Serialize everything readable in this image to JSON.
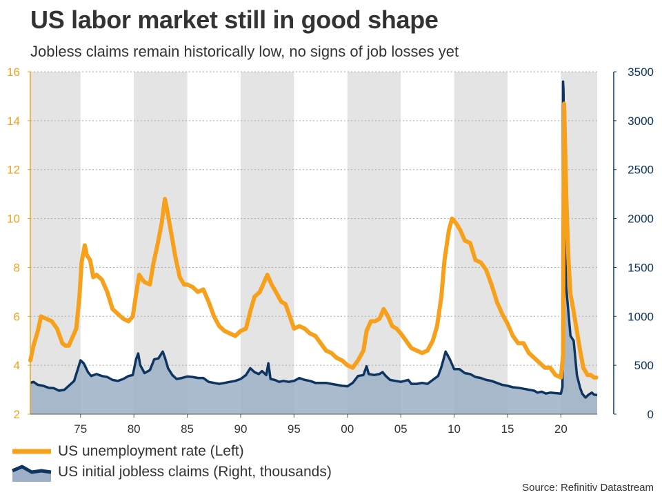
{
  "title": "US labor market still in good shape",
  "subtitle": "Jobless claims remain historically low, no signs of job losses yet",
  "source": "Source: Refinitiv Datastream",
  "colors": {
    "unemployment": "#F7A01B",
    "claims_line": "#0E3461",
    "claims_fill": "#9EB0C7",
    "band": "#E4E4E4",
    "left_axis": "#F7A01B",
    "right_axis": "#0E3461"
  },
  "legend": [
    {
      "label": "US unemployment rate (Left)",
      "icon": "orange-line-icon"
    },
    {
      "label": "US initial jobless claims (Right, thousands)",
      "icon": "navy-area-icon"
    }
  ],
  "chart_data": {
    "type": "line",
    "x_range": [
      1970.3,
      2023.4
    ],
    "x_ticks": [
      {
        "value": 1975,
        "label": "75"
      },
      {
        "value": 1980,
        "label": "80"
      },
      {
        "value": 1985,
        "label": "85"
      },
      {
        "value": 1990,
        "label": "90"
      },
      {
        "value": 1995,
        "label": "95"
      },
      {
        "value": 2000,
        "label": "00"
      },
      {
        "value": 2005,
        "label": "05"
      },
      {
        "value": 2010,
        "label": "10"
      },
      {
        "value": 2015,
        "label": "15"
      },
      {
        "value": 2020,
        "label": "20"
      }
    ],
    "left_axis": {
      "min": 2,
      "max": 16,
      "ticks": [
        2,
        4,
        6,
        8,
        10,
        12,
        14,
        16
      ]
    },
    "right_axis": {
      "min": 0,
      "max": 3500,
      "ticks": [
        0,
        500,
        1000,
        1500,
        2000,
        2500,
        3000,
        3500
      ]
    },
    "shaded_bands": [
      [
        1970.3,
        1975
      ],
      [
        1980,
        1985
      ],
      [
        1990,
        1995
      ],
      [
        2000,
        2005
      ],
      [
        2010,
        2015
      ],
      [
        2020,
        2023.4
      ]
    ],
    "series": [
      {
        "name": "US unemployment rate (Left)",
        "axis": "left",
        "style": "line",
        "points": [
          [
            1970.3,
            4.2
          ],
          [
            1970.6,
            4.8
          ],
          [
            1971.0,
            5.4
          ],
          [
            1971.3,
            6.0
          ],
          [
            1971.8,
            5.9
          ],
          [
            1972.3,
            5.8
          ],
          [
            1972.8,
            5.5
          ],
          [
            1973.3,
            4.9
          ],
          [
            1973.6,
            4.8
          ],
          [
            1973.9,
            4.8
          ],
          [
            1974.2,
            5.1
          ],
          [
            1974.6,
            5.5
          ],
          [
            1974.9,
            6.8
          ],
          [
            1975.1,
            8.2
          ],
          [
            1975.4,
            8.9
          ],
          [
            1975.6,
            8.5
          ],
          [
            1975.9,
            8.3
          ],
          [
            1976.2,
            7.6
          ],
          [
            1976.5,
            7.7
          ],
          [
            1977.0,
            7.5
          ],
          [
            1977.5,
            7.0
          ],
          [
            1978.0,
            6.3
          ],
          [
            1978.5,
            6.1
          ],
          [
            1979.0,
            5.9
          ],
          [
            1979.5,
            5.8
          ],
          [
            1979.9,
            6.0
          ],
          [
            1980.2,
            6.9
          ],
          [
            1980.5,
            7.7
          ],
          [
            1980.8,
            7.5
          ],
          [
            1981.0,
            7.4
          ],
          [
            1981.5,
            7.3
          ],
          [
            1981.8,
            8.1
          ],
          [
            1982.2,
            8.9
          ],
          [
            1982.6,
            9.8
          ],
          [
            1982.9,
            10.8
          ],
          [
            1983.1,
            10.4
          ],
          [
            1983.5,
            9.4
          ],
          [
            1983.9,
            8.4
          ],
          [
            1984.3,
            7.6
          ],
          [
            1984.7,
            7.3
          ],
          [
            1985.0,
            7.3
          ],
          [
            1985.5,
            7.2
          ],
          [
            1986.0,
            7.0
          ],
          [
            1986.5,
            7.1
          ],
          [
            1987.0,
            6.6
          ],
          [
            1987.5,
            6.0
          ],
          [
            1988.0,
            5.6
          ],
          [
            1988.5,
            5.4
          ],
          [
            1989.0,
            5.3
          ],
          [
            1989.5,
            5.2
          ],
          [
            1990.0,
            5.4
          ],
          [
            1990.5,
            5.5
          ],
          [
            1990.9,
            6.2
          ],
          [
            1991.3,
            6.8
          ],
          [
            1991.8,
            7.0
          ],
          [
            1992.2,
            7.4
          ],
          [
            1992.5,
            7.7
          ],
          [
            1992.9,
            7.3
          ],
          [
            1993.3,
            7.0
          ],
          [
            1993.8,
            6.6
          ],
          [
            1994.2,
            6.5
          ],
          [
            1994.6,
            6.0
          ],
          [
            1995.0,
            5.5
          ],
          [
            1995.5,
            5.6
          ],
          [
            1996.0,
            5.5
          ],
          [
            1996.5,
            5.3
          ],
          [
            1997.0,
            5.2
          ],
          [
            1997.5,
            4.9
          ],
          [
            1998.0,
            4.6
          ],
          [
            1998.5,
            4.5
          ],
          [
            1999.0,
            4.3
          ],
          [
            1999.5,
            4.2
          ],
          [
            2000.0,
            4.0
          ],
          [
            2000.5,
            3.9
          ],
          [
            2001.0,
            4.2
          ],
          [
            2001.5,
            4.6
          ],
          [
            2001.8,
            5.4
          ],
          [
            2002.2,
            5.8
          ],
          [
            2002.6,
            5.8
          ],
          [
            2003.0,
            5.9
          ],
          [
            2003.4,
            6.3
          ],
          [
            2003.8,
            6.0
          ],
          [
            2004.2,
            5.6
          ],
          [
            2004.6,
            5.5
          ],
          [
            2005.0,
            5.3
          ],
          [
            2005.5,
            5.0
          ],
          [
            2006.0,
            4.7
          ],
          [
            2006.5,
            4.6
          ],
          [
            2007.0,
            4.5
          ],
          [
            2007.5,
            4.6
          ],
          [
            2008.0,
            5.0
          ],
          [
            2008.4,
            5.6
          ],
          [
            2008.8,
            6.8
          ],
          [
            2009.1,
            8.3
          ],
          [
            2009.5,
            9.5
          ],
          [
            2009.8,
            10.0
          ],
          [
            2010.2,
            9.8
          ],
          [
            2010.6,
            9.5
          ],
          [
            2011.0,
            9.1
          ],
          [
            2011.5,
            9.0
          ],
          [
            2012.0,
            8.3
          ],
          [
            2012.5,
            8.2
          ],
          [
            2013.0,
            7.9
          ],
          [
            2013.5,
            7.3
          ],
          [
            2014.0,
            6.6
          ],
          [
            2014.5,
            6.1
          ],
          [
            2015.0,
            5.7
          ],
          [
            2015.5,
            5.2
          ],
          [
            2016.0,
            4.9
          ],
          [
            2016.5,
            4.9
          ],
          [
            2017.0,
            4.5
          ],
          [
            2017.5,
            4.3
          ],
          [
            2018.0,
            4.1
          ],
          [
            2018.5,
            3.9
          ],
          [
            2019.0,
            3.9
          ],
          [
            2019.5,
            3.6
          ],
          [
            2020.0,
            3.5
          ],
          [
            2020.2,
            4.4
          ],
          [
            2020.3,
            14.7
          ],
          [
            2020.5,
            11.0
          ],
          [
            2020.7,
            8.4
          ],
          [
            2020.9,
            6.9
          ],
          [
            2021.2,
            6.2
          ],
          [
            2021.5,
            5.4
          ],
          [
            2021.8,
            4.6
          ],
          [
            2022.1,
            3.9
          ],
          [
            2022.5,
            3.6
          ],
          [
            2022.8,
            3.6
          ],
          [
            2023.1,
            3.5
          ],
          [
            2023.3,
            3.5
          ]
        ]
      },
      {
        "name": "US initial jobless claims (Right, thousands)",
        "axis": "right",
        "style": "area",
        "points": [
          [
            1970.3,
            320
          ],
          [
            1970.6,
            330
          ],
          [
            1971.0,
            300
          ],
          [
            1971.5,
            290
          ],
          [
            1972.0,
            270
          ],
          [
            1972.5,
            265
          ],
          [
            1973.0,
            240
          ],
          [
            1973.5,
            250
          ],
          [
            1974.0,
            300
          ],
          [
            1974.4,
            340
          ],
          [
            1974.8,
            480
          ],
          [
            1975.0,
            550
          ],
          [
            1975.3,
            520
          ],
          [
            1975.7,
            430
          ],
          [
            1976.0,
            390
          ],
          [
            1976.5,
            410
          ],
          [
            1977.0,
            390
          ],
          [
            1977.5,
            380
          ],
          [
            1978.0,
            350
          ],
          [
            1978.5,
            340
          ],
          [
            1979.0,
            360
          ],
          [
            1979.5,
            390
          ],
          [
            1979.9,
            400
          ],
          [
            1980.2,
            560
          ],
          [
            1980.4,
            620
          ],
          [
            1980.6,
            500
          ],
          [
            1981.0,
            420
          ],
          [
            1981.5,
            450
          ],
          [
            1981.9,
            560
          ],
          [
            1982.3,
            570
          ],
          [
            1982.7,
            640
          ],
          [
            1982.9,
            580
          ],
          [
            1983.2,
            470
          ],
          [
            1983.6,
            400
          ],
          [
            1984.0,
            360
          ],
          [
            1984.5,
            370
          ],
          [
            1985.0,
            385
          ],
          [
            1985.5,
            380
          ],
          [
            1986.0,
            370
          ],
          [
            1986.5,
            370
          ],
          [
            1987.0,
            330
          ],
          [
            1987.5,
            320
          ],
          [
            1988.0,
            310
          ],
          [
            1988.5,
            320
          ],
          [
            1989.0,
            330
          ],
          [
            1989.5,
            340
          ],
          [
            1990.0,
            360
          ],
          [
            1990.5,
            400
          ],
          [
            1990.9,
            470
          ],
          [
            1991.3,
            430
          ],
          [
            1991.7,
            410
          ],
          [
            1992.0,
            440
          ],
          [
            1992.4,
            400
          ],
          [
            1992.6,
            520
          ],
          [
            1992.8,
            360
          ],
          [
            1993.2,
            350
          ],
          [
            1993.6,
            330
          ],
          [
            1994.0,
            340
          ],
          [
            1994.5,
            330
          ],
          [
            1995.0,
            340
          ],
          [
            1995.5,
            370
          ],
          [
            1996.0,
            350
          ],
          [
            1996.5,
            340
          ],
          [
            1997.0,
            320
          ],
          [
            1997.5,
            320
          ],
          [
            1998.0,
            320
          ],
          [
            1998.5,
            310
          ],
          [
            1999.0,
            300
          ],
          [
            1999.5,
            290
          ],
          [
            2000.0,
            285
          ],
          [
            2000.5,
            320
          ],
          [
            2001.0,
            390
          ],
          [
            2001.5,
            400
          ],
          [
            2001.8,
            490
          ],
          [
            2002.0,
            410
          ],
          [
            2002.5,
            400
          ],
          [
            2003.0,
            410
          ],
          [
            2003.3,
            430
          ],
          [
            2003.6,
            390
          ],
          [
            2004.0,
            350
          ],
          [
            2004.5,
            340
          ],
          [
            2005.0,
            330
          ],
          [
            2005.7,
            350
          ],
          [
            2006.0,
            310
          ],
          [
            2006.5,
            310
          ],
          [
            2007.0,
            320
          ],
          [
            2007.5,
            310
          ],
          [
            2008.0,
            350
          ],
          [
            2008.5,
            390
          ],
          [
            2008.8,
            480
          ],
          [
            2009.2,
            640
          ],
          [
            2009.6,
            560
          ],
          [
            2010.0,
            460
          ],
          [
            2010.5,
            460
          ],
          [
            2011.0,
            420
          ],
          [
            2011.5,
            410
          ],
          [
            2012.0,
            380
          ],
          [
            2012.5,
            370
          ],
          [
            2013.0,
            350
          ],
          [
            2013.5,
            340
          ],
          [
            2014.0,
            320
          ],
          [
            2014.5,
            300
          ],
          [
            2015.0,
            290
          ],
          [
            2015.5,
            275
          ],
          [
            2016.0,
            270
          ],
          [
            2016.5,
            260
          ],
          [
            2017.0,
            250
          ],
          [
            2017.5,
            240
          ],
          [
            2017.8,
            220
          ],
          [
            2018.2,
            230
          ],
          [
            2018.6,
            210
          ],
          [
            2019.0,
            220
          ],
          [
            2019.5,
            215
          ],
          [
            2020.0,
            210
          ],
          [
            2020.15,
            280
          ],
          [
            2020.2,
            3400
          ],
          [
            2020.25,
            3300
          ],
          [
            2020.3,
            2000
          ],
          [
            2020.5,
            1300
          ],
          [
            2020.9,
            800
          ],
          [
            2021.2,
            750
          ],
          [
            2021.5,
            400
          ],
          [
            2021.8,
            270
          ],
          [
            2022.0,
            210
          ],
          [
            2022.3,
            170
          ],
          [
            2022.6,
            200
          ],
          [
            2022.9,
            220
          ],
          [
            2023.1,
            200
          ],
          [
            2023.4,
            195
          ]
        ]
      }
    ]
  }
}
